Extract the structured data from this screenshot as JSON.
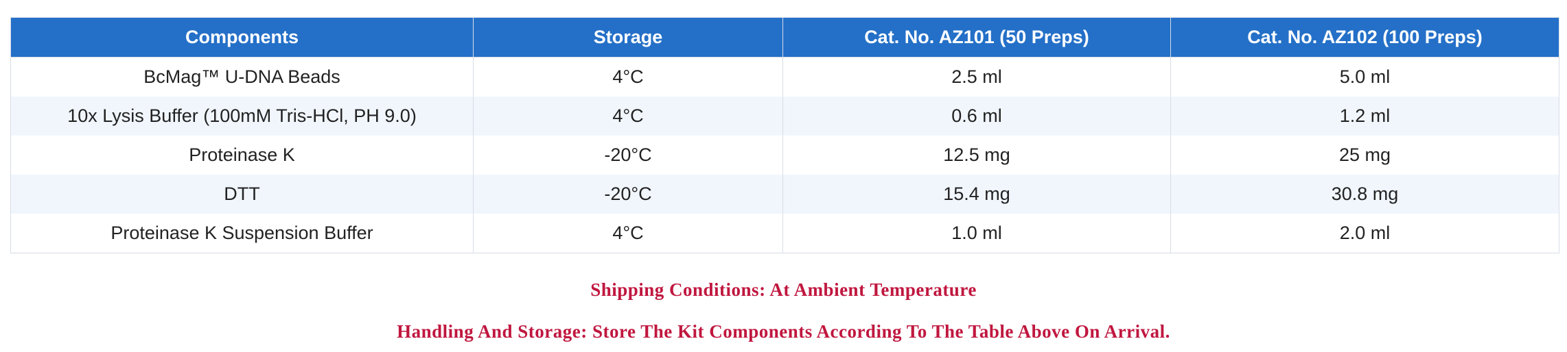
{
  "table": {
    "header": [
      "Components",
      "Storage",
      "Cat. No. AZ101 (50 Preps)",
      "Cat. No. AZ102 (100 Preps)"
    ],
    "rows": [
      [
        "BcMag™ U-DNA Beads",
        "4°C",
        "2.5 ml",
        "5.0 ml"
      ],
      [
        "10x Lysis Buffer (100mM Tris-HCl, PH 9.0)",
        "4°C",
        "0.6 ml",
        "1.2 ml"
      ],
      [
        "Proteinase K",
        "-20°C",
        "12.5 mg",
        "25 mg"
      ],
      [
        "DTT",
        "-20°C",
        "15.4 mg",
        "30.8 mg"
      ],
      [
        "Proteinase K Suspension Buffer",
        "4°C",
        "1.0 ml",
        "2.0 ml"
      ]
    ]
  },
  "notes": [
    "Shipping Conditions: At Ambient Temperature",
    "Handling And Storage: Store The Kit Components According To The Table Above On Arrival."
  ]
}
